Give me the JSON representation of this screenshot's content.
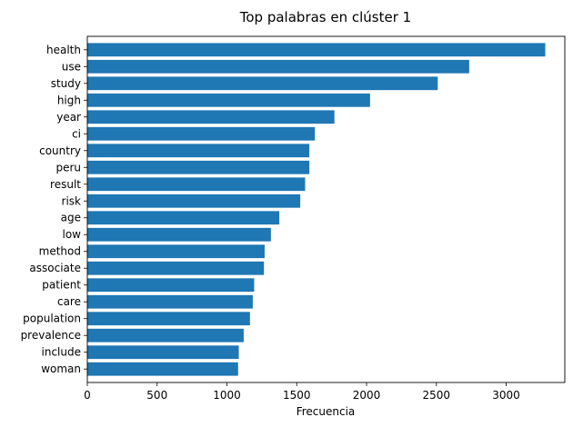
{
  "chart_data": {
    "type": "bar",
    "orientation": "horizontal",
    "title": "Top palabras en clúster 1",
    "xlabel": "Frecuencia",
    "ylabel": "",
    "xlim": [
      0,
      3420
    ],
    "xticks": [
      0,
      500,
      1000,
      1500,
      2000,
      2500,
      3000
    ],
    "categories": [
      "health",
      "use",
      "study",
      "high",
      "year",
      "ci",
      "country",
      "peru",
      "result",
      "risk",
      "age",
      "low",
      "method",
      "associate",
      "patient",
      "care",
      "population",
      "prevalence",
      "include",
      "woman"
    ],
    "values": [
      3280,
      2735,
      2510,
      2025,
      1770,
      1630,
      1590,
      1590,
      1560,
      1525,
      1375,
      1315,
      1270,
      1265,
      1195,
      1185,
      1165,
      1120,
      1085,
      1080
    ],
    "bar_color": "#1f77b4",
    "grid": false,
    "legend": "none"
  }
}
